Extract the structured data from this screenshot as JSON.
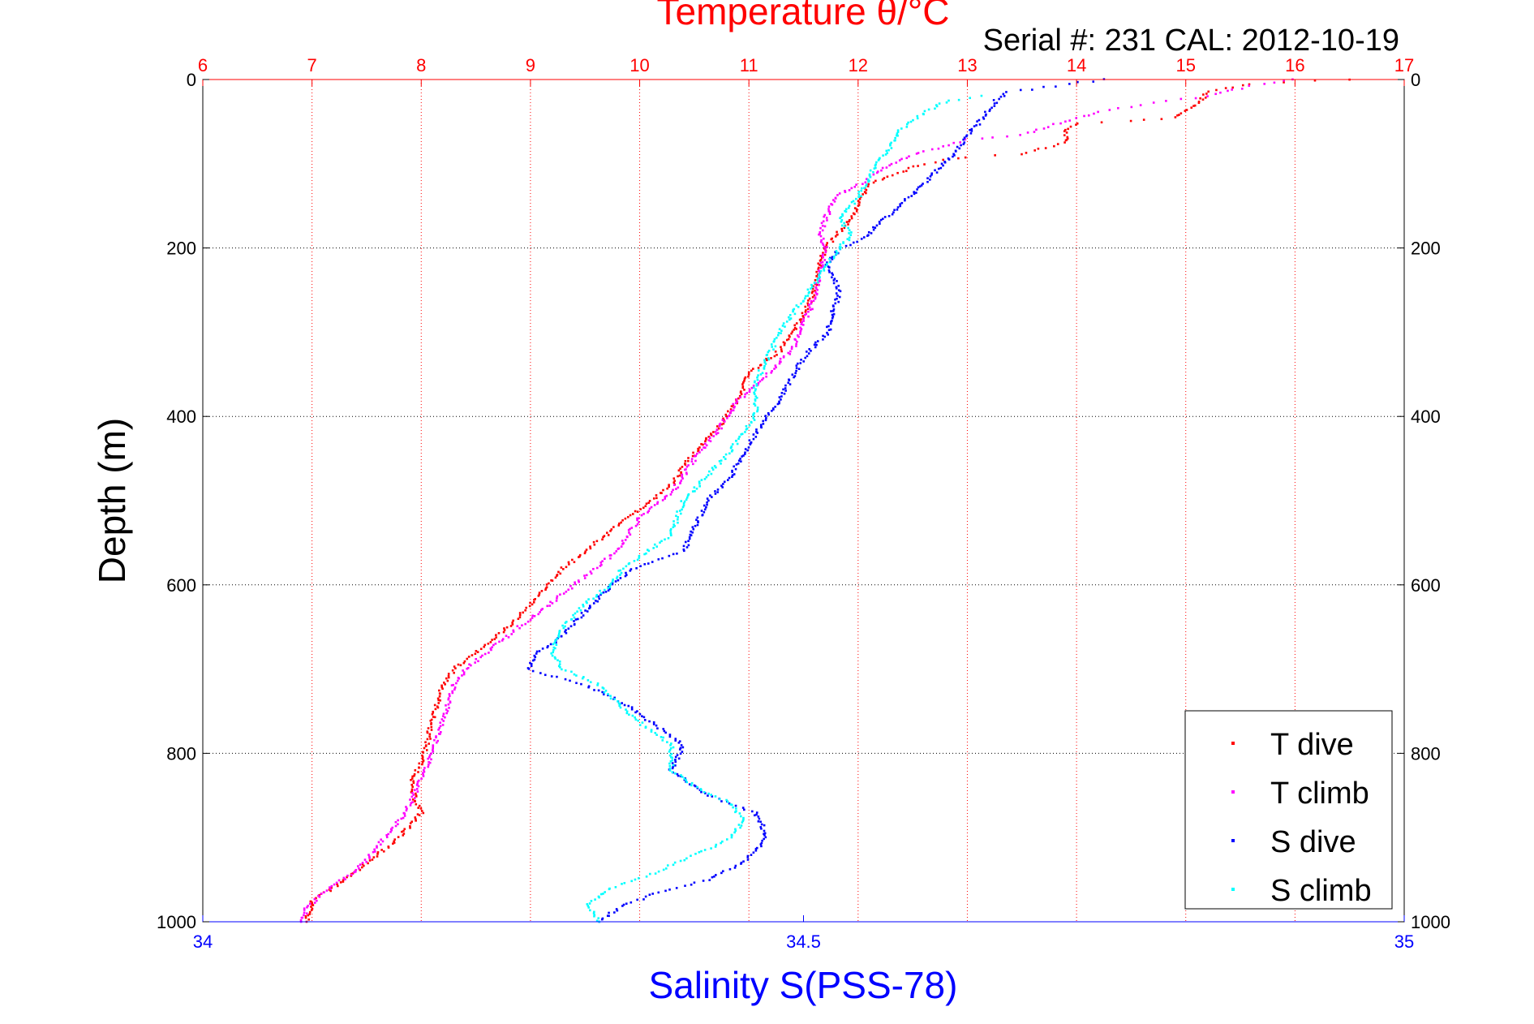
{
  "chart_data": {
    "type": "scatter",
    "title": "Temperature θ/°C",
    "subtitle": "Serial #: 231  CAL: 2012-10-19",
    "xlabel_top": "Temperature θ/°C",
    "xlabel_bottom": "Salinity S(PSS-78)",
    "ylabel": "Depth (m)",
    "temperature_axis": {
      "range": [
        6,
        17
      ],
      "ticks": [
        "6",
        "7",
        "8",
        "9",
        "10",
        "11",
        "12",
        "13",
        "14",
        "15",
        "16",
        "17"
      ]
    },
    "salinity_axis": {
      "range": [
        34,
        35
      ],
      "ticks": [
        "34",
        "34.5",
        "35"
      ]
    },
    "depth_axis": {
      "range": [
        0,
        1000
      ],
      "reversed": true,
      "ticks": [
        "0",
        "200",
        "400",
        "600",
        "800",
        "1000"
      ]
    },
    "grid": true,
    "legend_position": "bottom-right",
    "colors": {
      "t_dive": "#ff0000",
      "t_climb": "#ff00ff",
      "s_dive": "#0000ff",
      "s_climb": "#00ffff",
      "temp_axis": "#ff0000",
      "sal_axis": "#0000ff"
    },
    "series": [
      {
        "name": "T dive",
        "axis": "temperature",
        "color": "#ff0000",
        "points": [
          [
            16.5,
            0
          ],
          [
            15.6,
            5
          ],
          [
            15.2,
            15
          ],
          [
            15.1,
            30
          ],
          [
            14.9,
            45
          ],
          [
            14.5,
            50
          ],
          [
            14.0,
            52
          ],
          [
            13.9,
            60
          ],
          [
            13.9,
            75
          ],
          [
            13.5,
            88
          ],
          [
            13.0,
            92
          ],
          [
            12.6,
            100
          ],
          [
            12.4,
            110
          ],
          [
            12.1,
            125
          ],
          [
            12.0,
            150
          ],
          [
            11.9,
            170
          ],
          [
            11.8,
            185
          ],
          [
            11.7,
            200
          ],
          [
            11.65,
            220
          ],
          [
            11.6,
            250
          ],
          [
            11.5,
            280
          ],
          [
            11.3,
            320
          ],
          [
            11.0,
            350
          ],
          [
            10.9,
            380
          ],
          [
            10.8,
            400
          ],
          [
            10.6,
            430
          ],
          [
            10.4,
            460
          ],
          [
            10.3,
            480
          ],
          [
            10.0,
            510
          ],
          [
            9.6,
            550
          ],
          [
            9.3,
            580
          ],
          [
            9.1,
            610
          ],
          [
            8.8,
            650
          ],
          [
            8.5,
            680
          ],
          [
            8.3,
            700
          ],
          [
            8.2,
            720
          ],
          [
            8.1,
            760
          ],
          [
            8.05,
            790
          ],
          [
            8.0,
            810
          ],
          [
            7.9,
            840
          ],
          [
            8.0,
            870
          ],
          [
            7.8,
            900
          ],
          [
            7.5,
            930
          ],
          [
            7.2,
            960
          ],
          [
            7.0,
            975
          ],
          [
            6.95,
            1000
          ]
        ]
      },
      {
        "name": "T climb",
        "axis": "temperature",
        "color": "#ff00ff",
        "points": [
          [
            16.0,
            0
          ],
          [
            15.5,
            10
          ],
          [
            15.2,
            20
          ],
          [
            14.6,
            30
          ],
          [
            14.2,
            38
          ],
          [
            13.9,
            50
          ],
          [
            13.5,
            65
          ],
          [
            13.0,
            72
          ],
          [
            12.6,
            85
          ],
          [
            12.3,
            100
          ],
          [
            12.0,
            125
          ],
          [
            11.8,
            140
          ],
          [
            11.7,
            165
          ],
          [
            11.65,
            185
          ],
          [
            11.7,
            200
          ],
          [
            11.65,
            230
          ],
          [
            11.6,
            260
          ],
          [
            11.4,
            320
          ],
          [
            11.1,
            360
          ],
          [
            10.9,
            380
          ],
          [
            10.7,
            420
          ],
          [
            10.5,
            450
          ],
          [
            10.3,
            490
          ],
          [
            10.0,
            520
          ],
          [
            9.8,
            560
          ],
          [
            9.5,
            590
          ],
          [
            9.2,
            620
          ],
          [
            8.9,
            650
          ],
          [
            8.6,
            680
          ],
          [
            8.4,
            700
          ],
          [
            8.3,
            720
          ],
          [
            8.2,
            760
          ],
          [
            8.1,
            800
          ],
          [
            8.0,
            830
          ],
          [
            7.9,
            860
          ],
          [
            7.8,
            880
          ],
          [
            7.6,
            910
          ],
          [
            7.4,
            940
          ],
          [
            7.1,
            965
          ],
          [
            6.95,
            985
          ],
          [
            6.9,
            1000
          ]
        ]
      },
      {
        "name": "S dive",
        "axis": "salinity",
        "color": "#0000ff",
        "points": [
          [
            34.75,
            0
          ],
          [
            34.67,
            15
          ],
          [
            34.66,
            25
          ],
          [
            34.65,
            45
          ],
          [
            34.64,
            60
          ],
          [
            34.63,
            80
          ],
          [
            34.62,
            95
          ],
          [
            34.61,
            110
          ],
          [
            34.6,
            125
          ],
          [
            34.58,
            150
          ],
          [
            34.56,
            175
          ],
          [
            34.55,
            190
          ],
          [
            34.53,
            200
          ],
          [
            34.52,
            220
          ],
          [
            34.53,
            250
          ],
          [
            34.52,
            300
          ],
          [
            34.5,
            330
          ],
          [
            34.48,
            380
          ],
          [
            34.46,
            420
          ],
          [
            34.44,
            470
          ],
          [
            34.42,
            500
          ],
          [
            34.41,
            530
          ],
          [
            34.4,
            560
          ],
          [
            34.36,
            580
          ],
          [
            34.34,
            600
          ],
          [
            34.32,
            630
          ],
          [
            34.3,
            660
          ],
          [
            34.28,
            680
          ],
          [
            34.27,
            700
          ],
          [
            34.32,
            720
          ],
          [
            34.35,
            740
          ],
          [
            34.38,
            770
          ],
          [
            34.4,
            790
          ],
          [
            34.39,
            820
          ],
          [
            34.42,
            850
          ],
          [
            34.46,
            870
          ],
          [
            34.47,
            900
          ],
          [
            34.45,
            930
          ],
          [
            34.42,
            950
          ],
          [
            34.38,
            965
          ],
          [
            34.35,
            980
          ],
          [
            34.33,
            1000
          ]
        ]
      },
      {
        "name": "S climb",
        "axis": "salinity",
        "color": "#00ffff",
        "points": [
          [
            34.65,
            20
          ],
          [
            34.62,
            25
          ],
          [
            34.6,
            40
          ],
          [
            34.58,
            60
          ],
          [
            34.57,
            85
          ],
          [
            34.56,
            100
          ],
          [
            34.55,
            130
          ],
          [
            34.54,
            150
          ],
          [
            34.53,
            165
          ],
          [
            34.54,
            185
          ],
          [
            34.53,
            200
          ],
          [
            34.52,
            220
          ],
          [
            34.5,
            260
          ],
          [
            34.48,
            300
          ],
          [
            34.47,
            330
          ],
          [
            34.46,
            360
          ],
          [
            34.46,
            400
          ],
          [
            34.44,
            440
          ],
          [
            34.42,
            470
          ],
          [
            34.4,
            500
          ],
          [
            34.39,
            540
          ],
          [
            34.37,
            560
          ],
          [
            34.35,
            580
          ],
          [
            34.34,
            600
          ],
          [
            34.32,
            620
          ],
          [
            34.3,
            650
          ],
          [
            34.29,
            680
          ],
          [
            34.3,
            700
          ],
          [
            34.33,
            720
          ],
          [
            34.36,
            760
          ],
          [
            34.39,
            790
          ],
          [
            34.39,
            820
          ],
          [
            34.41,
            840
          ],
          [
            34.44,
            860
          ],
          [
            34.45,
            880
          ],
          [
            34.44,
            900
          ],
          [
            34.41,
            920
          ],
          [
            34.38,
            940
          ],
          [
            34.34,
            960
          ],
          [
            34.32,
            980
          ],
          [
            34.33,
            1000
          ]
        ]
      }
    ],
    "legend": [
      "T dive",
      "T climb",
      "S dive",
      "S climb"
    ]
  }
}
